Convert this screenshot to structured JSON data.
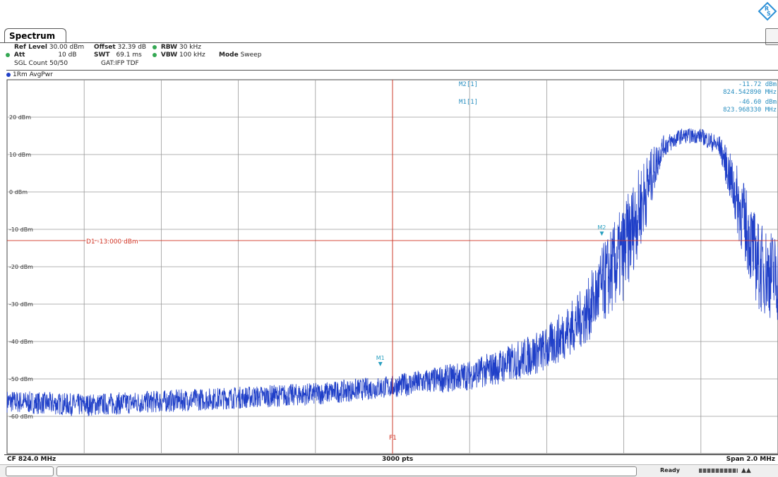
{
  "window": {
    "tab_label": "Spectrum"
  },
  "settings": {
    "ref_level_label": "Ref Level",
    "ref_level_value": "30.00 dBm",
    "offset_label": "Offset",
    "offset_value": "32.39 dB",
    "rbw_label": "RBW",
    "rbw_value": "30 kHz",
    "att_label": "Att",
    "att_value": "10 dB",
    "swt_label": "SWT",
    "swt_value": "69.1 ms",
    "vbw_label": "VBW",
    "vbw_value": "100 kHz",
    "mode_label": "Mode",
    "mode_value": "Sweep",
    "sgl_count": "SGL Count 50/50",
    "gat": "GAT:IFP TDF"
  },
  "trace_label": "1Rm AvgPwr",
  "markers": {
    "m2_label": "M2[1]",
    "m2_level": "-11.72 dBm",
    "m2_freq": "824.542890 MHz",
    "m1_label": "M1[1]",
    "m1_level": "-46.60 dBm",
    "m1_freq": "823.968330 MHz"
  },
  "limit_line_label": "D1 -13.000 dBm",
  "f1_label": "F1",
  "footer": {
    "cf": "CF 824.0 MHz",
    "points": "3000 pts",
    "span": "Span 2.0 MHz"
  },
  "status": {
    "ready": "Ready"
  },
  "colors": {
    "trace": "#1f3fc8",
    "marker": "#2aa0c0",
    "limit": "#d03020",
    "grid": "#9a9a9a"
  },
  "chart_data": {
    "type": "line",
    "xlabel": "",
    "ylabel": "",
    "x_range_mhz": [
      823.0,
      825.0
    ],
    "ylim": [
      -70,
      30
    ],
    "y_ticks": [
      20,
      10,
      0,
      -10,
      -20,
      -30,
      -40,
      -50,
      -60
    ],
    "y_tick_labels": [
      "20 dBm",
      "10 dBm",
      "0 dBm",
      "-10 dBm",
      "-20 dBm",
      "-30 dBm",
      "-40 dBm",
      "-50 dBm",
      "-60 dBm"
    ],
    "limit_dbm": -13.0,
    "f1_mhz": 824.0,
    "markers": [
      {
        "name": "M1",
        "x_mhz": 823.96833,
        "y_dbm": -46.6
      },
      {
        "name": "M2",
        "x_mhz": 824.54289,
        "y_dbm": -11.72
      }
    ],
    "series": [
      {
        "x_mhz": [
          823.0,
          823.2,
          823.4,
          823.6,
          823.8,
          824.0,
          824.2,
          824.3,
          824.4,
          824.5,
          824.55,
          824.6,
          824.65,
          824.7,
          824.75,
          824.8,
          824.85,
          824.9,
          824.95,
          825.0
        ],
        "avg_dbm": [
          -56,
          -57,
          -56,
          -55,
          -54,
          -52,
          -49,
          -46,
          -42,
          -33,
          -24,
          -16,
          -2,
          12,
          15,
          15,
          12,
          -4,
          -20,
          -23
        ],
        "ripple_db": [
          3,
          3,
          3,
          3,
          3,
          3,
          4,
          5,
          6,
          8,
          11,
          13,
          11,
          3,
          2,
          2,
          3,
          10,
          12,
          12
        ]
      }
    ]
  }
}
